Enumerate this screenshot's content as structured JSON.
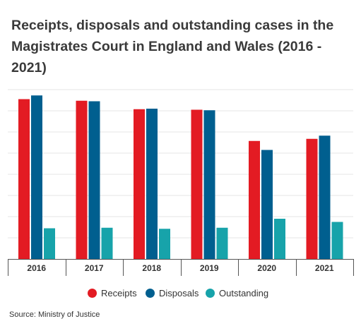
{
  "title": "Receipts, disposals and outstanding cases in the Magistrates Court in England and Wales (2016 - 2021)",
  "source": "Source: Ministry of Justice",
  "colors": {
    "receipts": "#e31b23",
    "disposals": "#005f8f",
    "outstanding": "#17a3aa",
    "grid": "#e6e6e6",
    "axis": "#555555"
  },
  "chart_data": {
    "type": "bar",
    "categories": [
      "2016",
      "2017",
      "2018",
      "2019",
      "2020",
      "2021"
    ],
    "series": [
      {
        "name": "Receipts",
        "values": [
          1510,
          1495,
          1415,
          1410,
          1115,
          1135
        ]
      },
      {
        "name": "Disposals",
        "values": [
          1545,
          1490,
          1420,
          1405,
          1030,
          1165
        ]
      },
      {
        "name": "Outstanding",
        "values": [
          290,
          295,
          285,
          295,
          380,
          350
        ]
      }
    ],
    "ylim": [
      0,
      1600
    ],
    "grid": true,
    "legend_position": "bottom"
  }
}
